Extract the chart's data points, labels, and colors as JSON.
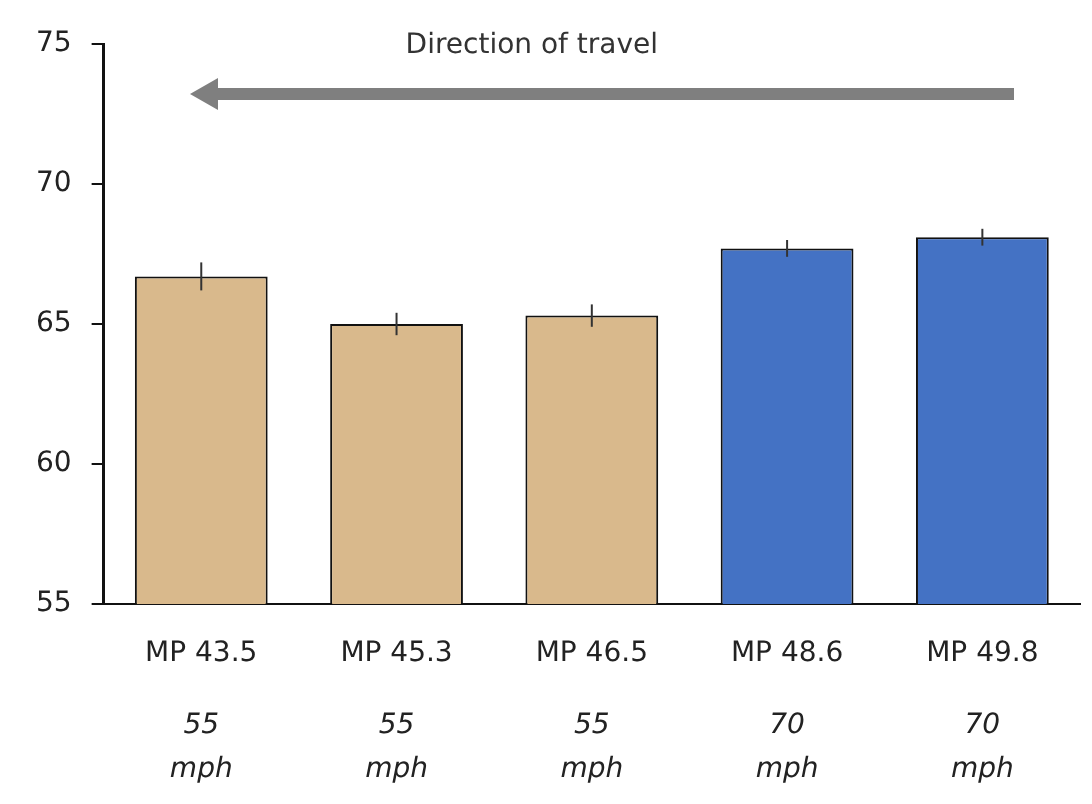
{
  "chart_data": {
    "type": "bar",
    "categories": [
      "MP 43.5\n55\nmph",
      "MP 45.3\n55\nmph",
      "MP 46.5\n55\nmph",
      "MP 48.6\n70\nmph",
      "MP 49.8\n70\nmph"
    ],
    "values": [
      66.7,
      65.0,
      65.3,
      67.7,
      68.1
    ],
    "errors": [
      0.5,
      0.4,
      0.4,
      0.3,
      0.3
    ],
    "colors": [
      "#d9b98c",
      "#d9b98c",
      "#d9b98c",
      "#4472c4",
      "#4472c4"
    ],
    "ylim": [
      55,
      75
    ],
    "yticks": [
      55,
      60,
      65,
      70,
      75
    ],
    "grid": false,
    "legend": false,
    "annotations": [
      "Direction of travel"
    ]
  }
}
